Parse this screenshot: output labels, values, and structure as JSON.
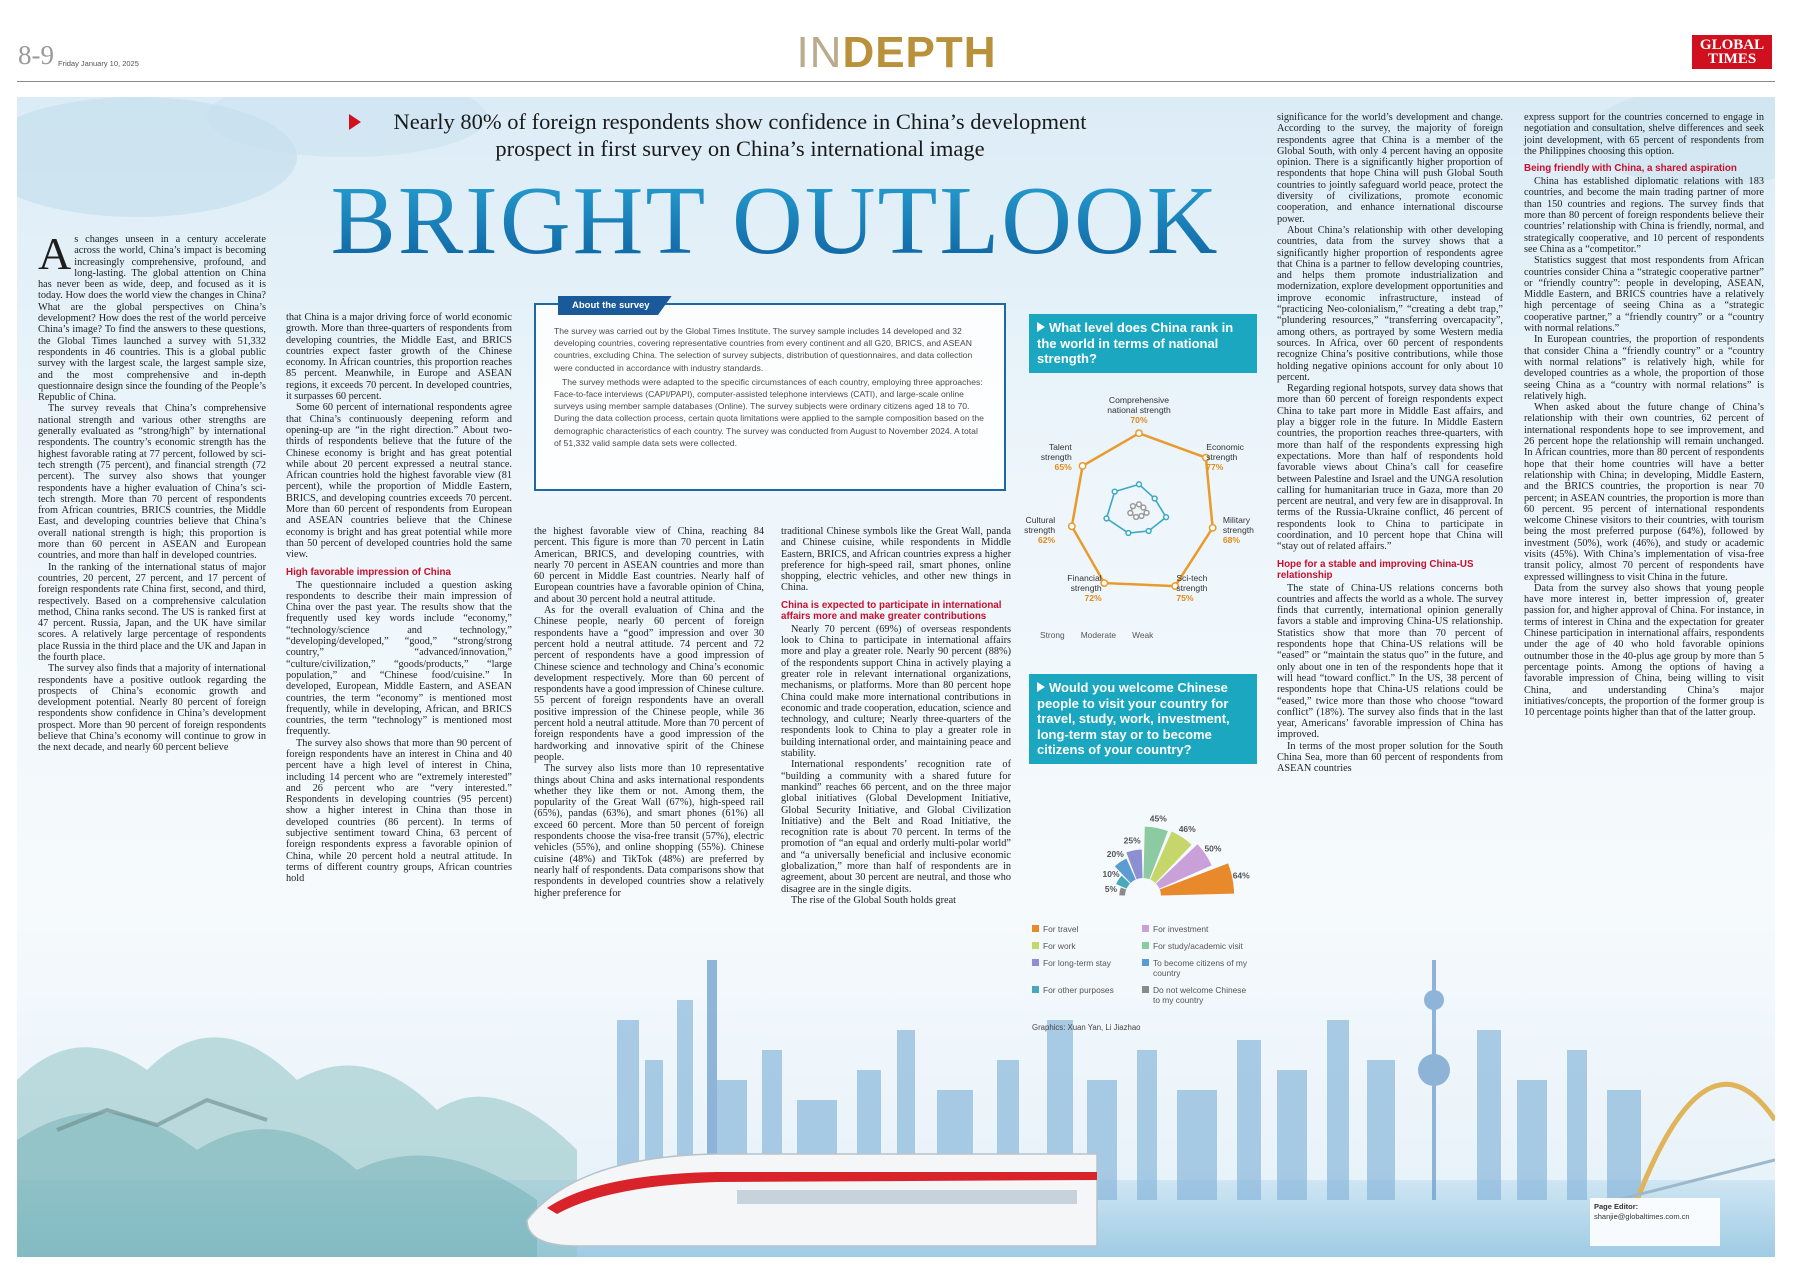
{
  "header": {
    "page_number": "8-9",
    "date": "Friday January 10, 2025",
    "section_light": "IN",
    "section_bold": "DEPTH",
    "logo": "GLOBAL TIMES"
  },
  "headline": {
    "subtitle": "Nearly 80% of foreign respondents show confidence in China’s development prospect in first survey on China’s international image",
    "title": "BRIGHT OUTLOOK"
  },
  "columns": [
    [
      {
        "p": "As changes unseen in a century accelerate across the world, China’s impact is becoming increasingly comprehensive, profound, and long-lasting. The global attention on China has never been as wide, deep, and focused as it is today. How does the world view the changes in China? What are the global perspectives on China’s development? How does the rest of the world perceive China’s image? To find the answers to these questions, the Global Times launched a survey with 51,332 respondents in 46 countries. This is a global public survey with the largest scale, the largest sample size, and the most comprehensive and in-depth questionnaire design since the founding of the People’s Republic of China."
      },
      {
        "p": "The survey reveals that China’s comprehensive national strength and various other strengths are generally evaluated as “strong/high” by international respondents. The country’s economic strength has the highest favorable rating at 77 percent, followed by sci-tech strength (75 percent), and financial strength (72 percent). The survey also shows that younger respondents have a higher evaluation of China’s sci-tech strength. More than 70 percent of respondents from African countries, BRICS countries, the Middle East, and developing countries believe that China’s overall national strength is high; this proportion is more than 60 percent in ASEAN and European countries, and more than half in developed countries."
      },
      {
        "p": "In the ranking of the international status of major countries, 20 percent, 27 percent, and 17 percent of foreign respondents rate China first, second, and third, respectively. Based on a comprehensive calculation method, China ranks second. The US is ranked first at 47 percent. Russia, Japan, and the UK have similar scores. A relatively large percentage of respondents place Russia in the third place and the UK and Japan in the fourth place."
      },
      {
        "p": "The survey also finds that a majority of international respondents have a positive outlook regarding the prospects of China’s economic growth and development potential. Nearly 80 percent of foreign respondents show confidence in China’s development prospect. More than 90 percent of foreign respondents believe that China’s economy will continue to grow in the next decade, and nearly 60 percent believe"
      }
    ],
    [
      {
        "p": "that China is a major driving force of world economic growth. More than three-quarters of respondents from developing countries, the Middle East, and BRICS countries expect faster growth of the Chinese economy. In African countries, this proportion reaches 85 percent. Meanwhile, in Europe and ASEAN regions, it exceeds 70 percent. In developed countries, it surpasses 60 percent."
      },
      {
        "p": "Some 60 percent of international respondents agree that China’s continuously deepening reform and opening-up are “in the right direction.” About two-thirds of respondents believe that the future of the Chinese economy is bright and has great potential while about 20 percent expressed a neutral stance. African countries hold the highest favorable view (81 percent), while the proportion of Middle Eastern, BRICS, and developing countries exceeds 70 percent. More than 60 percent of respondents from European and ASEAN countries believe that the Chinese economy is bright and has great potential while more than 50 percent of developed countries hold the same view."
      },
      {
        "h": "High favorable impression of China"
      },
      {
        "p": "The questionnaire included a question asking respondents to describe their main impression of China over the past year. The results show that the frequently used key words include “economy,” “technology/science and technology,” “developing/developed,” “good,” “strong/strong country,” “advanced/innovation,” “culture/civilization,” “goods/products,” “large population,” and “Chinese food/cuisine.” In developed, European, Middle Eastern, and ASEAN countries, the term “economy” is mentioned most frequently, while in developing, African, and BRICS countries, the term “technology” is mentioned most frequently."
      },
      {
        "p": "The survey also shows that more than 90 percent of foreign respondents have an interest in China and 40 percent have a high level of interest in China, including 14 percent who are “extremely interested” and 26 percent who are “very interested.” Respondents in developing countries (95 percent) show a higher interest in China than those in developed countries (86 percent). In terms of subjective sentiment toward China, 63 percent of foreign respondents express a favorable opinion of China, while 20 percent hold a neutral attitude. In terms of different country groups, African countries hold"
      }
    ],
    [
      {
        "p": "the highest favorable view of China, reaching 84 percent. This figure is more than 70 percent in Latin American, BRICS, and developing countries, with nearly 70 percent in ASEAN countries and more than 60 percent in Middle East countries. Nearly half of European countries have a favorable opinion of China, and about 30 percent hold a neutral attitude."
      },
      {
        "p": "As for the overall evaluation of China and the Chinese people, nearly 60 percent of foreign respondents have a “good” impression and over 30 percent hold a neutral attitude. 74 percent and 72 percent of respondents have a good impression of Chinese science and technology and China’s economic development respectively. More than 60 percent of respondents have a good impression of Chinese culture. 55 percent of foreign respondents have an overall positive impression of the Chinese people, while 36 percent hold a neutral attitude. More than 70 percent of foreign respondents have a good impression of the hardworking and innovative spirit of the Chinese people."
      },
      {
        "p": "The survey also lists more than 10 representative things about China and asks international respondents whether they like them or not. Among them, the popularity of the Great Wall (67%), high-speed rail (65%), pandas (63%), and smart phones (61%) all exceed 60 percent. More than 50 percent of foreign respondents choose the visa-free transit (57%), electric vehicles (55%), and online shopping (55%). Chinese cuisine (48%) and TikTok (48%) are preferred by nearly half of respondents. Data comparisons show that respondents in developed countries show a relatively higher preference for"
      }
    ],
    [
      {
        "p": "traditional Chinese symbols like the Great Wall, panda and Chinese cuisine, while respondents in Middle Eastern, BRICS, and African countries express a higher preference for high-speed rail, smart phones, online shopping, electric vehicles, and other new things in China."
      },
      {
        "h": "China is expected to participate in international affairs more and make greater contributions"
      },
      {
        "p": "Nearly 70 percent (69%) of overseas respondents look to China to participate in international affairs more and play a greater role. Nearly 90 percent (88%) of the respondents support China in actively playing a greater role in relevant international organizations, mechanisms, or platforms. More than 80 percent hope China could make more international contributions in economic and trade cooperation, education, science and technology, and culture; Nearly three-quarters of the respondents look to China to play a greater role in building international order, and maintaining peace and stability."
      },
      {
        "p": "International respondents’ recognition rate of “building a community with a shared future for mankind” reaches 66 percent, and on the three major global initiatives (Global Development Initiative, Global Security Initiative, and Global Civilization Initiative) and the Belt and Road Initiative, the recognition rate is about 70 percent. In terms of the promotion of “an equal and orderly multi-polar world” and “a universally beneficial and inclusive economic globalization,” more than half of respondents are in agreement, about 30 percent are neutral, and those who disagree are in the single digits."
      },
      {
        "p": "The rise of the Global South holds great"
      }
    ],
    [
      {
        "p": "significance for the world’s development and change. According to the survey, the majority of foreign respondents agree that China is a member of the Global South, with only 4 percent having an opposite opinion. There is a significantly higher proportion of respondents that hope China will push Global South countries to jointly safeguard world peace, protect the diversity of civilizations, promote economic cooperation, and enhance international discourse power."
      },
      {
        "p": "About China’s relationship with other developing countries, data from the survey shows that a significantly higher proportion of respondents agree that China is a partner to fellow developing countries, and helps them promote industrialization and modernization, explore development opportunities and improve economic infrastructure, instead of “practicing Neo-colonialism,” “creating a debt trap,” “plundering resources,” “transferring overcapacity”, among others, as portrayed by some Western media sources. In Africa, over 60 percent of respondents recognize China’s positive contributions, while those holding negative opinions account for only about 10 percent."
      },
      {
        "p": "Regarding regional hotspots, survey data shows that more than 60 percent of foreign respondents expect China to take part more in Middle East affairs, and play a bigger role in the future. In Middle Eastern countries, the proportion reaches three-quarters, with more than half of the respondents expressing high expectations. More than half of respondents hold favorable views about China’s call for ceasefire between Palestine and Israel and the UNGA resolution calling for humanitarian truce in Gaza, more than 20 percent are neutral, and very few are in disapproval. In terms of the Russia-Ukraine conflict, 46 percent of respondents look to China to participate in coordination, and 10 percent hope that China will “stay out of related affairs.”"
      },
      {
        "h": "Hope for a stable and improving China-US relationship"
      },
      {
        "p": "The state of China-US relations concerns both countries and affects the world as a whole. The survey finds that currently, international opinion generally favors a stable and improving China-US relationship. Statistics show that more than 70 percent of respondents hope that China-US relations will be “eased” or “maintain the status quo” in the future, and only about one in ten of the respondents hope that it will head “toward conflict.” In the US, 38 percent of respondents hope that China-US relations could be “eased,” twice more than those who choose “toward conflict” (18%). The survey also finds that in the last year, Americans’ favorable impression of China has improved."
      },
      {
        "p": "In terms of the most proper solution for the South China Sea, more than 60 percent of respondents from ASEAN countries"
      }
    ],
    [
      {
        "p": "express support for the countries concerned to engage in negotiation and consultation, shelve differences and seek joint development, with 65 percent of respondents from the Philippines choosing this option."
      },
      {
        "h": "Being friendly with China, a shared aspiration"
      },
      {
        "p": "China has established diplomatic relations with 183 countries, and become the main trading partner of more than 150 countries and regions. The survey finds that more than 80 percent of foreign respondents believe their countries’ relationship with China is friendly, normal, and strategically cooperative, and 10 percent of respondents see China as a “competitor.”"
      },
      {
        "p": "Statistics suggest that most respondents from African countries consider China a “strategic cooperative partner” or “friendly country”: people in developing, ASEAN, Middle Eastern, and BRICS countries have a relatively high percentage of seeing China as a “strategic cooperative partner,” a “friendly country” or a “country with normal relations.”"
      },
      {
        "p": "In European countries, the proportion of respondents that consider China a “friendly country” or a “country with normal relations” is relatively high, while for developed countries as a whole, the proportion of those seeing China as a “country with normal relations” is relatively high."
      },
      {
        "p": "When asked about the future change of China’s relationship with their own countries, 62 percent of international respondents hope to see improvement, and 26 percent hope the relationship will remain unchanged. In African countries, more than 80 percent of respondents hope that their home countries will have a better relationship with China; in developing, Middle Eastern, and the BRICS countries, the proportion is near 70 percent; in ASEAN countries, the proportion is more than 60 percent. 95 percent of international respondents welcome Chinese visitors to their countries, with tourism being the most preferred purpose (64%), followed by investment (50%), work (46%), and study or academic visits (45%). With China’s implementation of visa-free transit policy, almost 70 percent of respondents have expressed willingness to visit China in the future."
      },
      {
        "p": "Data from the survey also shows that young people have more interest in, better impression of, greater passion for, and higher approval of China. For instance, in terms of interest in China and the expectation for greater Chinese participation in international affairs, respondents under the age of 40 who hold favorable opinions outnumber those in the 40-plus age group by more than 5 percentage points. Among the options of having a favorable impression of China, being willing to visit China, and understanding China’s major initiatives/concepts, the proportion of the former group is 10 percentage points higher than that of the latter group."
      }
    ]
  ],
  "about_box": {
    "title": "About the survey",
    "paragraphs": [
      "The survey was carried out by the Global Times Institute. The survey sample includes 14 developed and 32 developing countries, covering representative countries from every continent and all G20, BRICS, and ASEAN countries, excluding China. The selection of survey subjects, distribution of questionnaires, and data collection were conducted in accordance with industry standards.",
      "The survey methods were adapted to the specific circumstances of each country, employing three approaches: Face-to-face interviews (CAPI/PAPI), computer-assisted telephone interviews (CATI), and large-scale online surveys using member sample databases (Online). The survey subjects were ordinary citizens aged 18 to 70. During the data collection process, certain quota limitations were applied to the sample composition based on the demographic characteristics of each country. The survey was conducted from August to November 2024. A total of 51,332 valid sample data sets were collected."
    ]
  },
  "chart_data": [
    {
      "type": "radar",
      "title": "What level does China rank in the world in terms of national strength?",
      "categories": [
        "Comprehensive national strength",
        "Economic strength",
        "Military strength",
        "Sci-tech strength",
        "Financial strength",
        "Cultural strength",
        "Talent strength"
      ],
      "rlim": [
        0,
        90
      ],
      "series": [
        {
          "name": "Strong",
          "color": "#e89a2c",
          "values": [
            70,
            77,
            68,
            75,
            72,
            62,
            65
          ],
          "value_labels": [
            "70%",
            "77%",
            "68%",
            "75%",
            "72%",
            "62%",
            "65%"
          ]
        },
        {
          "name": "Moderate",
          "color": "#3aa9c4",
          "values": [
            24,
            18,
            25,
            20,
            22,
            30,
            28
          ]
        },
        {
          "name": "Weak",
          "color": "#9a9a9a",
          "values": [
            6,
            5,
            7,
            5,
            6,
            8,
            7
          ]
        }
      ],
      "legend": "bottom"
    },
    {
      "type": "radial-bar",
      "title": "Would you welcome Chinese people to visit your country for travel, study, work, investment, long-term stay or to become citizens of your country?",
      "categories": [
        "For travel",
        "For investment",
        "For work",
        "For study/academic visit",
        "For long-term stay",
        "To become citizens of my country",
        "For other purposes",
        "Do not welcome Chinese to my country"
      ],
      "values": [
        64,
        50,
        46,
        45,
        25,
        20,
        10,
        5
      ],
      "value_labels": [
        "64%",
        "50%",
        "46%",
        "45%",
        "25%",
        "20%",
        "10%",
        "5%"
      ],
      "colors": [
        "#e8892b",
        "#c9a0d8",
        "#c6d66a",
        "#8ccaa2",
        "#8e8fd2",
        "#5b9cd2",
        "#46a8bc",
        "#8a8a8a"
      ],
      "rlim": [
        0,
        70
      ],
      "legend": "bottom",
      "credit": "Graphics: Xuan Yan, Li Jiazhao"
    }
  ],
  "page_editor": {
    "label": "Page Editor:",
    "email": "shanjie@globaltimes.com.cn"
  }
}
